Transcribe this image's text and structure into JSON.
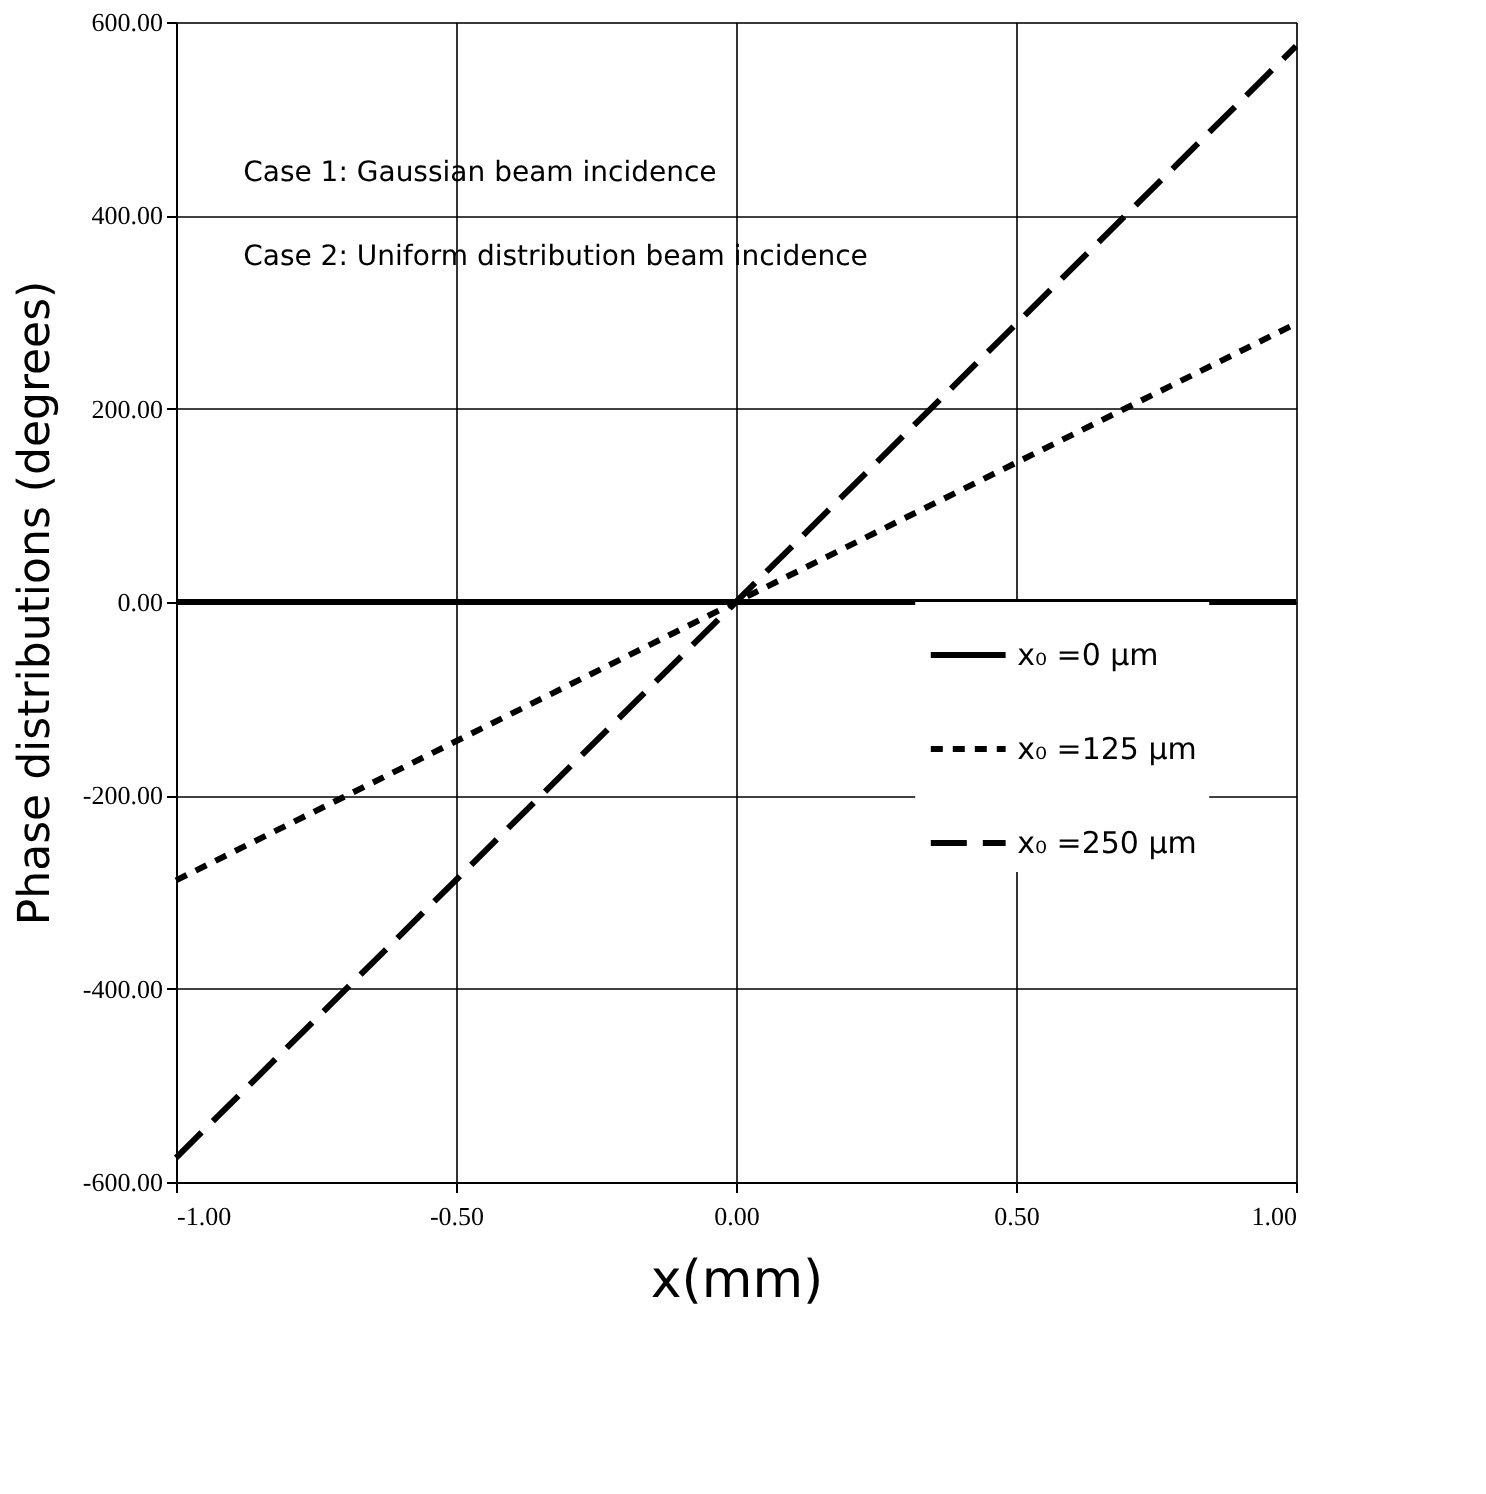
{
  "chart_data": {
    "type": "line",
    "xlabel": "x(mm)",
    "ylabel": "Phase distributions (degrees)",
    "annotations": [
      "Case 1: Gaussian beam incidence",
      "Case 2: Uniform distribution beam incidence"
    ],
    "x": [
      -1,
      0,
      1
    ],
    "series": [
      {
        "name": "x₀ =0 µm",
        "color": "#000000",
        "line_style": "solid",
        "values": [
          0,
          0,
          0
        ]
      },
      {
        "name": "x₀ =125 µm",
        "color": "#000000",
        "line_style": "dashed",
        "values": [
          -288,
          0,
          288
        ]
      },
      {
        "name": "x₀ =250 µm",
        "color": "#000000",
        "line_style": "dashed",
        "values": [
          -575,
          0,
          575
        ]
      }
    ],
    "xlim": [
      -1,
      1
    ],
    "xticks": [
      {
        "value": -1,
        "label": "-1.00"
      },
      {
        "value": -0.5,
        "label": "-0.50"
      },
      {
        "value": 0,
        "label": "0.00"
      },
      {
        "value": 0.5,
        "label": "0.50"
      },
      {
        "value": 1,
        "label": "1.00"
      }
    ],
    "ylim": [
      -600,
      600
    ],
    "yticks": [
      {
        "value": -600,
        "label": "-600.00"
      },
      {
        "value": -400,
        "label": "-400.00"
      },
      {
        "value": -200,
        "label": "-200.00"
      },
      {
        "value": 0,
        "label": "0.00"
      },
      {
        "value": 200,
        "label": "200.00"
      },
      {
        "value": 400,
        "label": "400.00"
      },
      {
        "value": 600,
        "label": "600.00"
      }
    ],
    "grid": true,
    "legend": "right",
    "marker": "none"
  }
}
